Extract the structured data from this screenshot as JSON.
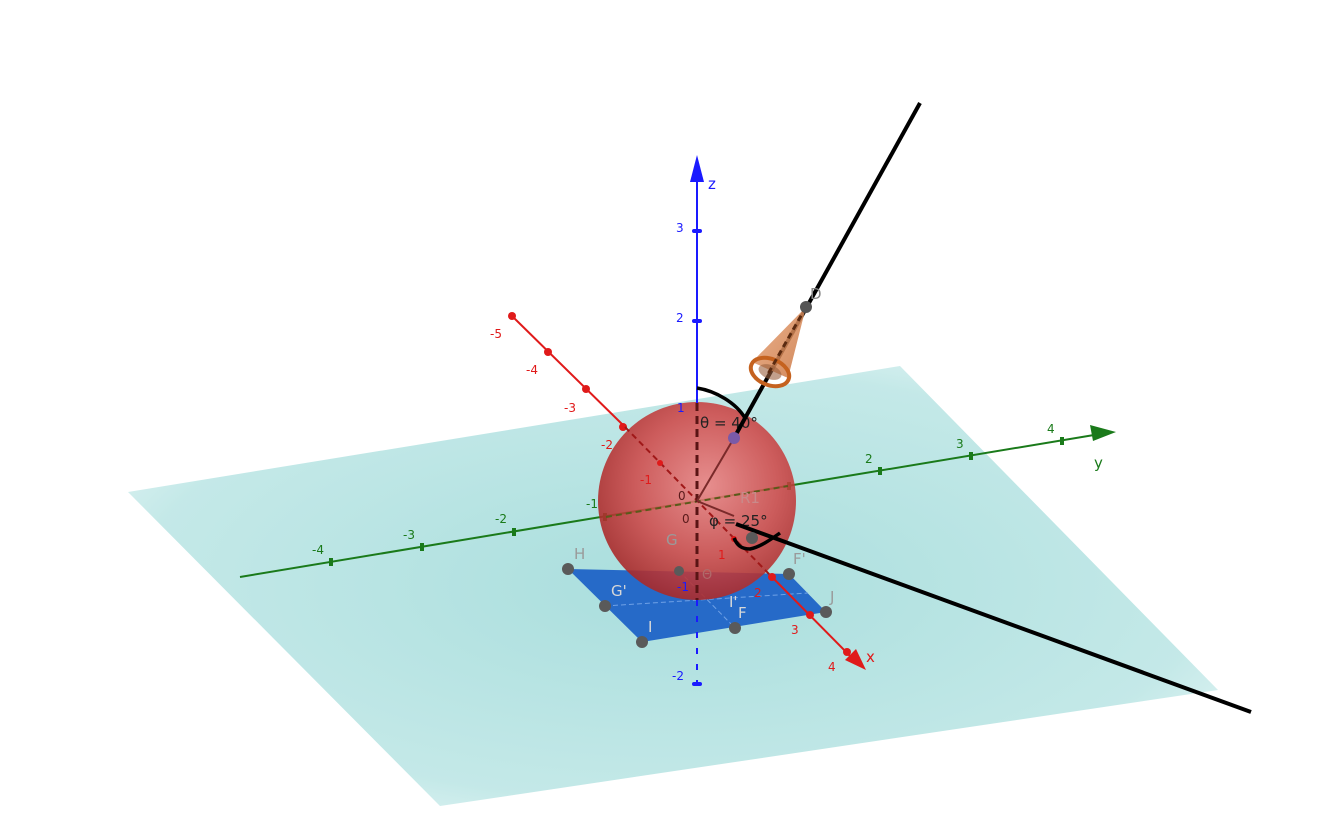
{
  "axes": {
    "z": {
      "label": "z",
      "ticks": [
        "3",
        "2",
        "1",
        "-1",
        "-2"
      ],
      "color": "#1a1aff"
    },
    "y": {
      "label": "y",
      "ticks": [
        "-4",
        "-3",
        "-2",
        "-1",
        "2",
        "3",
        "4"
      ],
      "color": "#1a7a1a"
    },
    "x": {
      "label": "x",
      "ticks": [
        "-5",
        "-4",
        "-3",
        "-2",
        "-1",
        "1",
        "2",
        "3",
        "4"
      ],
      "color": "#e01a1a"
    },
    "origin": "0"
  },
  "angles": {
    "theta": "θ = 40°",
    "phi": "φ = 25°",
    "theta_small": "Θ"
  },
  "points": {
    "D": "D",
    "H": "H",
    "G": "G",
    "G_prime": "G'",
    "I": "I",
    "I_prime": "I'",
    "F": "F",
    "F_prime": "F'",
    "J": "J",
    "R": "R1"
  },
  "colors": {
    "plane": "#a9dedd",
    "sphere": "#c03a3a",
    "square": "#1f63c6",
    "cone": "#d9824a"
  }
}
